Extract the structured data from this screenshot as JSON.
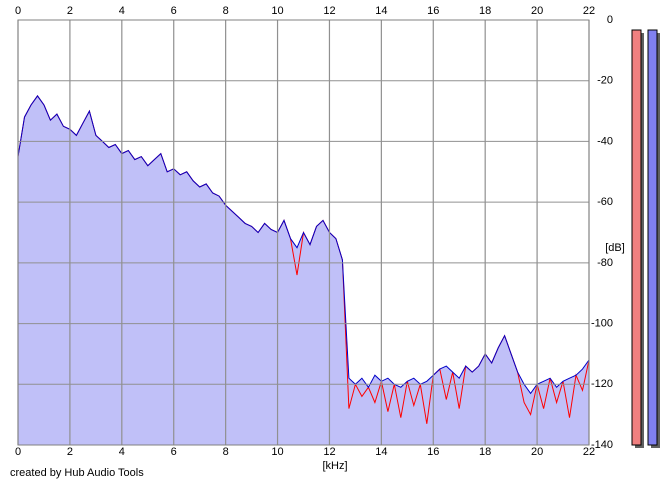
{
  "chart_data": {
    "type": "line",
    "x_label": "[kHz]",
    "y_label": "[dB]",
    "footer": "created by Hub Audio Tools",
    "xlim": [
      0,
      22
    ],
    "xticks": [
      0,
      2,
      4,
      6,
      8,
      10,
      12,
      14,
      16,
      18,
      20,
      22
    ],
    "ylim": [
      -140,
      0
    ],
    "yticks": [
      0,
      -20,
      -40,
      -60,
      -80,
      -100,
      -120,
      -140
    ],
    "grid": true,
    "background": "#ffffff",
    "x": [
      0,
      0.25,
      0.5,
      0.75,
      1,
      1.25,
      1.5,
      1.75,
      2,
      2.25,
      2.5,
      2.75,
      3,
      3.25,
      3.5,
      3.75,
      4,
      4.25,
      4.5,
      4.75,
      5,
      5.25,
      5.5,
      5.75,
      6,
      6.25,
      6.5,
      6.75,
      7,
      7.25,
      7.5,
      7.75,
      8,
      8.25,
      8.5,
      8.75,
      9,
      9.25,
      9.5,
      9.75,
      10,
      10.25,
      10.5,
      10.75,
      11,
      11.25,
      11.5,
      11.75,
      12,
      12.25,
      12.5,
      12.75,
      13,
      13.25,
      13.5,
      13.75,
      14,
      14.25,
      14.5,
      14.75,
      15,
      15.25,
      15.5,
      15.75,
      16,
      16.25,
      16.5,
      16.75,
      17,
      17.25,
      17.5,
      17.75,
      18,
      18.25,
      18.5,
      18.75,
      19,
      19.25,
      19.5,
      19.75,
      20,
      20.25,
      20.5,
      20.75,
      21,
      21.25,
      21.5,
      21.75,
      22
    ],
    "series": [
      {
        "color": "#ff0000",
        "values": [
          -45,
          -32,
          -28,
          -25,
          -28,
          -33,
          -31,
          -35,
          -36,
          -38,
          -34,
          -30,
          -38,
          -40,
          -42,
          -41,
          -44,
          -43,
          -46,
          -45,
          -48,
          -46,
          -44,
          -50,
          -49,
          -51,
          -50,
          -53,
          -55,
          -54,
          -57,
          -58,
          -61,
          -63,
          -65,
          -67,
          -68,
          -70,
          -67,
          -69,
          -70,
          -66,
          -72,
          -84,
          -70,
          -74,
          -68,
          -66,
          -70,
          -72,
          -79,
          -128,
          -120,
          -124,
          -121,
          -126,
          -119,
          -129,
          -120,
          -131,
          -119,
          -127,
          -120,
          -133,
          -117,
          -115,
          -125,
          -116,
          -128,
          -114,
          -116,
          -114,
          -110,
          -113,
          -108,
          -104,
          -110,
          -116,
          -126,
          -130,
          -120,
          -128,
          -118,
          -126,
          -119,
          -131,
          -117,
          -122,
          -112
        ]
      },
      {
        "color": "#0000c8",
        "fill": "#c0c0f8",
        "values": [
          -45,
          -32,
          -28,
          -25,
          -28,
          -33,
          -31,
          -35,
          -36,
          -38,
          -34,
          -30,
          -38,
          -40,
          -42,
          -41,
          -44,
          -43,
          -46,
          -45,
          -48,
          -46,
          -44,
          -50,
          -49,
          -51,
          -50,
          -53,
          -55,
          -54,
          -57,
          -58,
          -61,
          -63,
          -65,
          -67,
          -68,
          -70,
          -67,
          -69,
          -70,
          -66,
          -72,
          -75,
          -70,
          -74,
          -68,
          -66,
          -70,
          -72,
          -79,
          -118,
          -120,
          -118,
          -121,
          -117,
          -119,
          -118,
          -120,
          -121,
          -119,
          -118,
          -120,
          -119,
          -117,
          -115,
          -114,
          -116,
          -118,
          -114,
          -116,
          -114,
          -110,
          -113,
          -108,
          -104,
          -110,
          -116,
          -120,
          -123,
          -120,
          -119,
          -118,
          -121,
          -119,
          -118,
          -117,
          -115,
          -112
        ]
      }
    ]
  }
}
